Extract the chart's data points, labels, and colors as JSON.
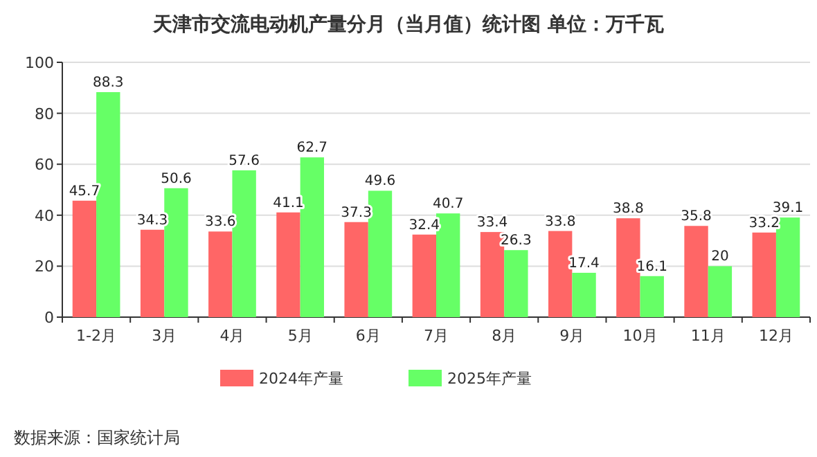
{
  "chart_data": {
    "type": "bar",
    "title": "天津市交流电动机产量分月（当月值）统计图 单位：万千瓦",
    "categories": [
      "1-2月",
      "3月",
      "4月",
      "5月",
      "6月",
      "7月",
      "8月",
      "9月",
      "10月",
      "11月",
      "12月"
    ],
    "series": [
      {
        "name": "2024年产量",
        "color": "#ff6666",
        "values": [
          45.7,
          34.3,
          33.6,
          41.1,
          37.3,
          32.4,
          33.4,
          33.8,
          38.8,
          35.8,
          33.2
        ]
      },
      {
        "name": "2025年产量",
        "color": "#66ff66",
        "values": [
          88.3,
          50.6,
          57.6,
          62.7,
          49.6,
          40.7,
          26.3,
          17.4,
          16.1,
          20,
          39.1
        ]
      }
    ],
    "ylim": [
      0,
      100
    ],
    "yticks": [
      0,
      20,
      40,
      60,
      80,
      100
    ],
    "grid": "y",
    "legend": "bottom",
    "data_labels": true,
    "annotations": [
      "数据来源：国家统计局"
    ]
  }
}
